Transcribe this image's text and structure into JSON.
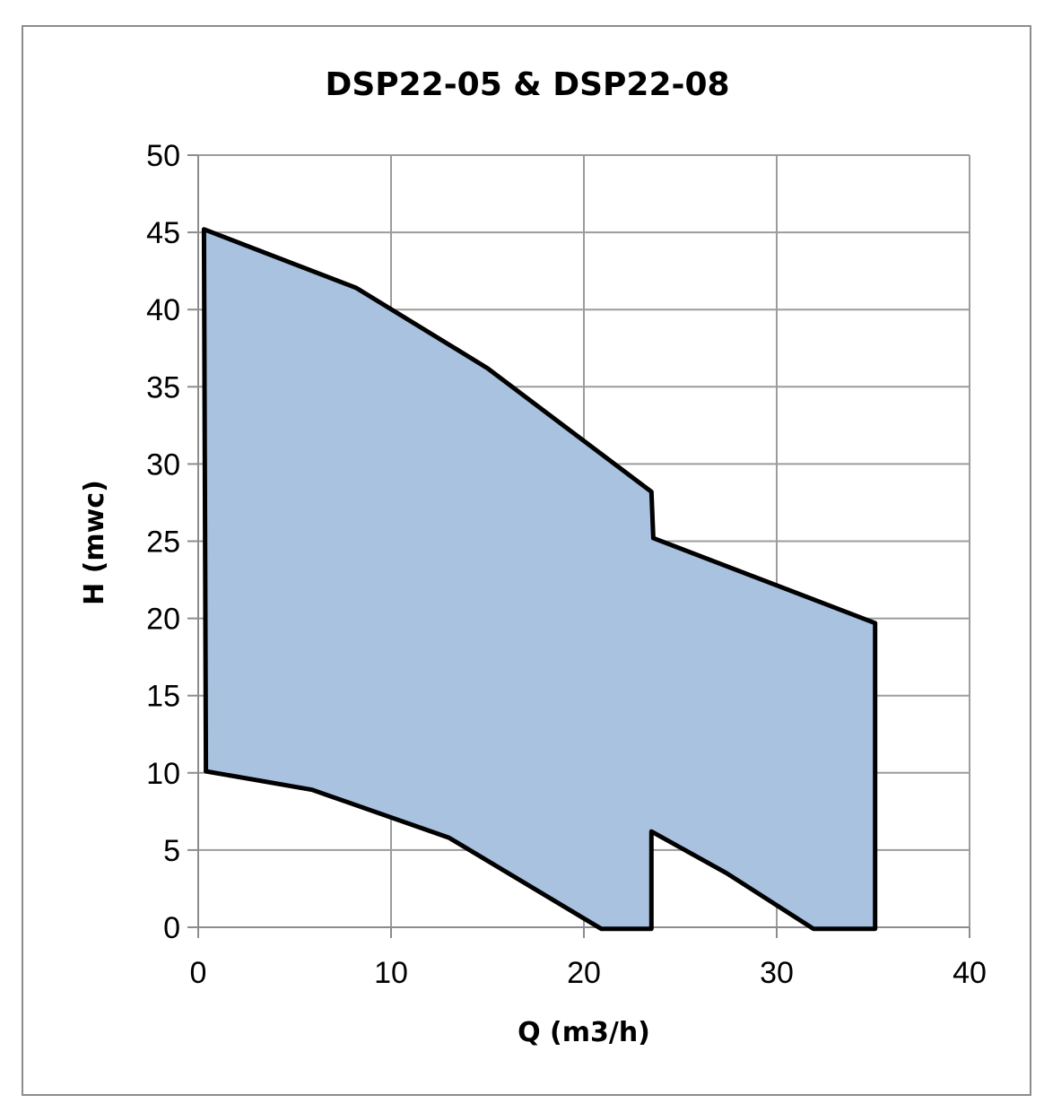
{
  "chart_data": {
    "type": "area",
    "title": "DSP22-05 & DSP22-08",
    "xlabel": "Q (m3/h)",
    "ylabel": "H (mwc)",
    "xlim": [
      0,
      40
    ],
    "ylim": [
      0,
      50
    ],
    "x_ticks": [
      "0",
      "10",
      "20",
      "30",
      "40"
    ],
    "y_ticks": [
      "0",
      "5",
      "10",
      "15",
      "20",
      "25",
      "30",
      "35",
      "40",
      "45",
      "50"
    ],
    "grid": true,
    "legend": "none",
    "fill_color": "#a9c2e0",
    "outline_color": "#000000",
    "grid_color": "#9c9c9c",
    "series": [
      {
        "points": [
          [
            0.3,
            45.2
          ],
          [
            8.2,
            41.4
          ],
          [
            15.0,
            36.2
          ],
          [
            23.5,
            28.2
          ],
          [
            23.6,
            25.2
          ],
          [
            35.1,
            19.7
          ],
          [
            35.1,
            -0.1
          ],
          [
            31.9,
            -0.1
          ],
          [
            27.4,
            3.5
          ],
          [
            23.5,
            6.2
          ],
          [
            23.5,
            -0.1
          ],
          [
            20.9,
            -0.1
          ],
          [
            13.0,
            5.8
          ],
          [
            5.9,
            8.9
          ],
          [
            0.4,
            10.1
          ]
        ]
      }
    ]
  }
}
